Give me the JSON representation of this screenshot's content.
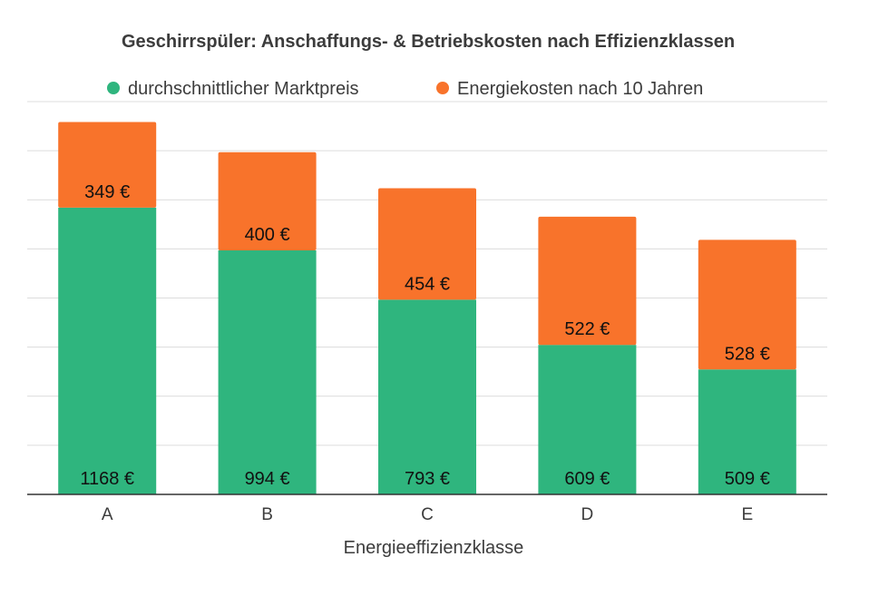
{
  "chart_data": {
    "type": "bar",
    "stacked": true,
    "title": "Geschirrspüler: Anschaffungs- & Betriebskosten nach Effizienzklassen",
    "xlabel": "Energieeffizienzklasse",
    "ylabel": "",
    "categories": [
      "A",
      "B",
      "C",
      "D",
      "E"
    ],
    "series": [
      {
        "name": "durchschnittlicher Marktpreis",
        "color": "#2fb57e",
        "values": [
          1168,
          994,
          793,
          609,
          509
        ],
        "labels": [
          "1168 €",
          "994 €",
          "793 €",
          "609 €",
          "509 €"
        ]
      },
      {
        "name": "Energiekosten nach 10 Jahren",
        "color": "#f8732b",
        "values": [
          349,
          400,
          454,
          522,
          528
        ],
        "labels": [
          "349 €",
          "400 €",
          "454 €",
          "522 €",
          "528 €"
        ]
      }
    ],
    "ylim": [
      0,
      1600
    ],
    "grid": true,
    "grid_step": 200,
    "y_tick_labels_shown": false,
    "legend_position": "top"
  }
}
